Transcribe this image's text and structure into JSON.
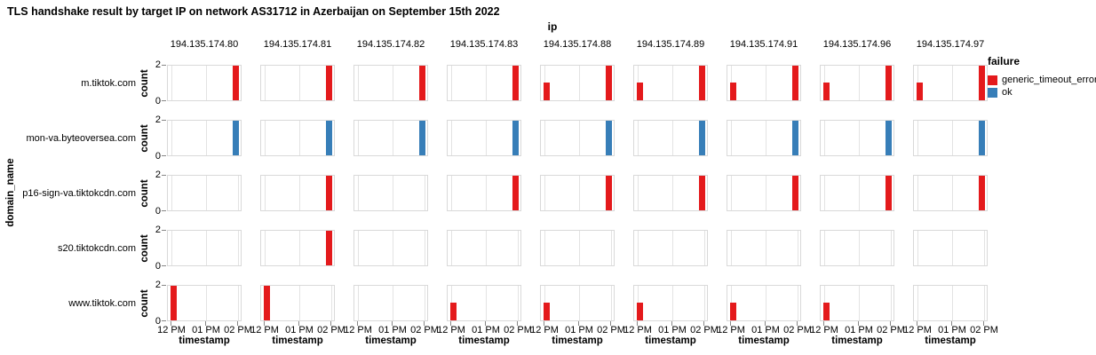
{
  "title": "TLS handshake result by target IP on network AS31712 in Azerbaijan on September 15th 2022",
  "chart_data": {
    "type": "bar",
    "title": "TLS handshake result by target IP on network AS31712 in Azerbaijan on September 15th 2022",
    "facet": {
      "column_title": "ip",
      "row_title": "domain_name"
    },
    "x_axis": {
      "title": "timestamp",
      "ticks": [
        "12 PM",
        "01 PM",
        "02 PM"
      ]
    },
    "y_axis": {
      "title": "count",
      "ticks": [
        0,
        2
      ],
      "ylim": [
        0,
        2
      ]
    },
    "legend": {
      "title": "failure",
      "entries": [
        {
          "label": "generic_timeout_error",
          "color": "#e41a1c"
        },
        {
          "label": "ok",
          "color": "#377eb8"
        }
      ]
    },
    "columns": [
      "194.135.174.80",
      "194.135.174.81",
      "194.135.174.82",
      "194.135.174.83",
      "194.135.174.88",
      "194.135.174.89",
      "194.135.174.91",
      "194.135.174.96",
      "194.135.174.97"
    ],
    "rows": [
      "m.tiktok.com",
      "mon-va.byteoversea.com",
      "p16-sign-va.tiktokcdn.com",
      "s20.tiktokcdn.com",
      "www.tiktok.com"
    ],
    "cells": [
      [
        [
          {
            "time": "02 PM",
            "count": 2,
            "failure": "generic_timeout_error"
          }
        ],
        [
          {
            "time": "02 PM",
            "count": 2,
            "failure": "generic_timeout_error"
          }
        ],
        [
          {
            "time": "02 PM",
            "count": 2,
            "failure": "generic_timeout_error"
          }
        ],
        [
          {
            "time": "02 PM",
            "count": 2,
            "failure": "generic_timeout_error"
          }
        ],
        [
          {
            "time": "12 PM",
            "count": 1,
            "failure": "generic_timeout_error"
          },
          {
            "time": "02 PM",
            "count": 2,
            "failure": "generic_timeout_error"
          }
        ],
        [
          {
            "time": "12 PM",
            "count": 1,
            "failure": "generic_timeout_error"
          },
          {
            "time": "02 PM",
            "count": 2,
            "failure": "generic_timeout_error"
          }
        ],
        [
          {
            "time": "12 PM",
            "count": 1,
            "failure": "generic_timeout_error"
          },
          {
            "time": "02 PM",
            "count": 2,
            "failure": "generic_timeout_error"
          }
        ],
        [
          {
            "time": "12 PM",
            "count": 1,
            "failure": "generic_timeout_error"
          },
          {
            "time": "02 PM",
            "count": 2,
            "failure": "generic_timeout_error"
          }
        ],
        [
          {
            "time": "12 PM",
            "count": 1,
            "failure": "generic_timeout_error"
          },
          {
            "time": "02 PM",
            "count": 2,
            "failure": "generic_timeout_error"
          }
        ]
      ],
      [
        [
          {
            "time": "02 PM",
            "count": 2,
            "failure": "ok"
          }
        ],
        [
          {
            "time": "02 PM",
            "count": 2,
            "failure": "ok"
          }
        ],
        [
          {
            "time": "02 PM",
            "count": 2,
            "failure": "ok"
          }
        ],
        [
          {
            "time": "02 PM",
            "count": 2,
            "failure": "ok"
          }
        ],
        [
          {
            "time": "02 PM",
            "count": 2,
            "failure": "ok"
          }
        ],
        [
          {
            "time": "02 PM",
            "count": 2,
            "failure": "ok"
          }
        ],
        [
          {
            "time": "02 PM",
            "count": 2,
            "failure": "ok"
          }
        ],
        [
          {
            "time": "02 PM",
            "count": 2,
            "failure": "ok"
          }
        ],
        [
          {
            "time": "02 PM",
            "count": 2,
            "failure": "ok"
          }
        ]
      ],
      [
        [],
        [
          {
            "time": "02 PM",
            "count": 2,
            "failure": "generic_timeout_error"
          }
        ],
        [],
        [
          {
            "time": "02 PM",
            "count": 2,
            "failure": "generic_timeout_error"
          }
        ],
        [
          {
            "time": "02 PM",
            "count": 2,
            "failure": "generic_timeout_error"
          }
        ],
        [
          {
            "time": "02 PM",
            "count": 2,
            "failure": "generic_timeout_error"
          }
        ],
        [
          {
            "time": "02 PM",
            "count": 2,
            "failure": "generic_timeout_error"
          }
        ],
        [
          {
            "time": "02 PM",
            "count": 2,
            "failure": "generic_timeout_error"
          }
        ],
        [
          {
            "time": "02 PM",
            "count": 2,
            "failure": "generic_timeout_error"
          }
        ]
      ],
      [
        [],
        [
          {
            "time": "02 PM",
            "count": 2,
            "failure": "generic_timeout_error"
          }
        ],
        [],
        [],
        [],
        [],
        [],
        [],
        []
      ],
      [
        [
          {
            "time": "12 PM",
            "count": 2,
            "failure": "generic_timeout_error"
          }
        ],
        [
          {
            "time": "12 PM",
            "count": 2,
            "failure": "generic_timeout_error"
          }
        ],
        [],
        [
          {
            "time": "12 PM",
            "count": 1,
            "failure": "generic_timeout_error"
          }
        ],
        [
          {
            "time": "12 PM",
            "count": 1,
            "failure": "generic_timeout_error"
          }
        ],
        [
          {
            "time": "12 PM",
            "count": 1,
            "failure": "generic_timeout_error"
          }
        ],
        [
          {
            "time": "12 PM",
            "count": 1,
            "failure": "generic_timeout_error"
          }
        ],
        [
          {
            "time": "12 PM",
            "count": 1,
            "failure": "generic_timeout_error"
          }
        ],
        []
      ]
    ]
  }
}
